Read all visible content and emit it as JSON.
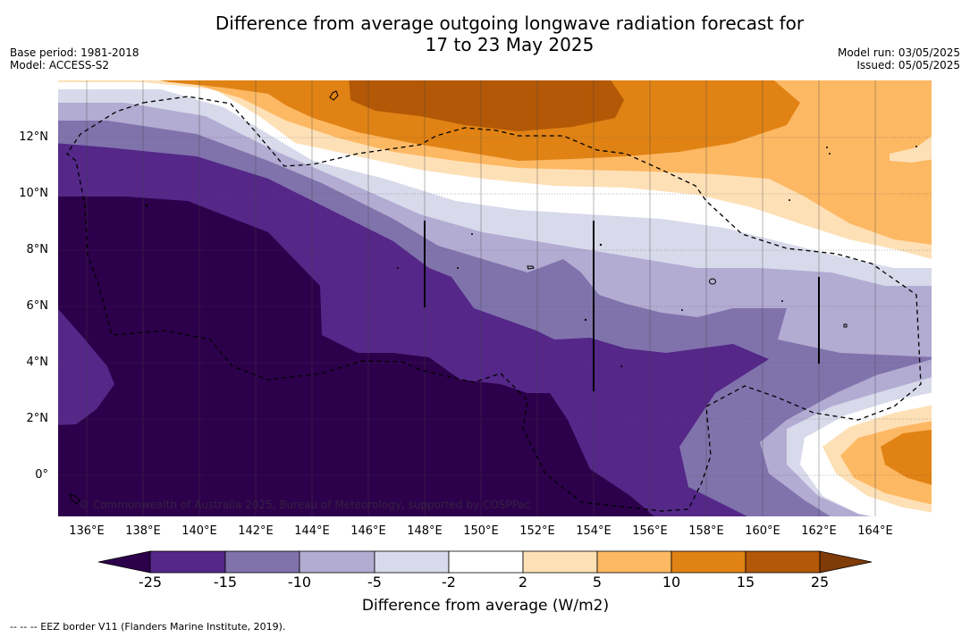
{
  "header": {
    "title_line1": "Difference from average outgoing longwave radiation forecast for",
    "title_line2": "17 to 23 May 2025",
    "base_period": "Base period: 1981-2018",
    "model": "Model: ACCESS-S2",
    "model_run": "Model run: 03/05/2025",
    "issued": "Issued: 05/05/2025"
  },
  "map": {
    "lat_labels": [
      "12°N",
      "10°N",
      "8°N",
      "6°N",
      "4°N",
      "2°N",
      "0°"
    ],
    "lon_labels": [
      "136°E",
      "138°E",
      "140°E",
      "142°E",
      "144°E",
      "146°E",
      "148°E",
      "150°E",
      "152°E",
      "154°E",
      "156°E",
      "158°E",
      "160°E",
      "162°E",
      "164°E"
    ],
    "credit": "© Commonwealth of Australia 2025, Bureau of Meteorology, supported by COSPPac",
    "palette": {
      "lt_neg25": "#2d004b",
      "neg25_neg15": "#542788",
      "neg15_neg10": "#8073ac",
      "neg10_neg5": "#b2abd2",
      "neg5_neg2": "#d8daeb",
      "neg2_2": "#ffffff",
      "2_5": "#fee0b6",
      "5_10": "#fdb863",
      "10_15": "#e08214",
      "15_25": "#b35806",
      "gt_25": "#7f3b08"
    }
  },
  "colorbar": {
    "ticks": [
      "-25",
      "-15",
      "-10",
      "-5",
      "-2",
      "2",
      "5",
      "10",
      "15",
      "25"
    ],
    "title": "Difference from average (W/m2)"
  },
  "footer": {
    "eez_legend": "-- -- -- EEZ border V11 (Flanders Marine Institute, 2019)."
  }
}
